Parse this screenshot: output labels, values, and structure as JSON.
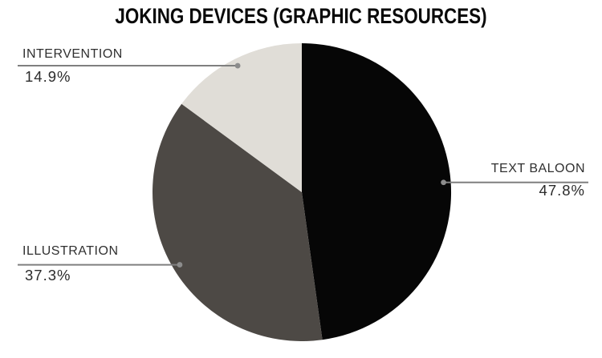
{
  "chart_data": {
    "type": "pie",
    "title": "JOKING DEVICES (GRAPHIC RESOURCES)",
    "categories": [
      "TEXT BALOON",
      "ILLUSTRATION",
      "INTERVENTION"
    ],
    "values": [
      47.8,
      37.3,
      14.9
    ],
    "colors": [
      "#060606",
      "#4d4945",
      "#e0ddd7"
    ],
    "start_angle_deg": 0,
    "direction": "clockwise",
    "legend": "none",
    "callout_line_color": "#7f7f7f",
    "callout_dot_color": "#8c8c8c"
  },
  "callouts": [
    {
      "id": "text-baloon",
      "label": "TEXT BALOON",
      "pct": "47.8%"
    },
    {
      "id": "illustration",
      "label": "ILLUSTRATION",
      "pct": "37.3%"
    },
    {
      "id": "intervention",
      "label": "INTERVENTION",
      "pct": "14.9%"
    }
  ]
}
